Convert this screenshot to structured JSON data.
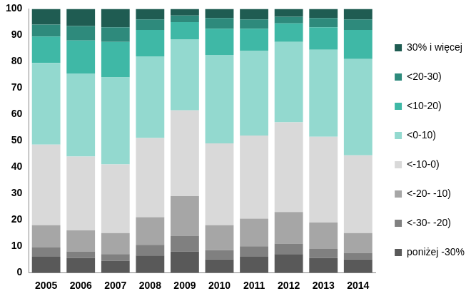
{
  "chart_data": {
    "type": "bar",
    "stacked": true,
    "legend": "right",
    "grid": false,
    "categories": [
      "2005",
      "2006",
      "2007",
      "2008",
      "2009",
      "2010",
      "2011",
      "2012",
      "2013",
      "2014"
    ],
    "ylim": [
      0,
      100
    ],
    "yticks": [
      0,
      10,
      20,
      30,
      40,
      50,
      60,
      70,
      80,
      90,
      100
    ],
    "series": [
      {
        "name": "poniżej -30%",
        "color": "#595959",
        "values": [
          6,
          5.5,
          4.5,
          6.5,
          8,
          5,
          6,
          7,
          5.5,
          5
        ]
      },
      {
        "name": "<-30- -20)",
        "color": "#808080",
        "values": [
          3.5,
          2.5,
          2.5,
          4,
          6,
          3.5,
          4,
          4,
          3.5,
          2.5
        ]
      },
      {
        "name": "<-20- -10)",
        "color": "#a6a6a6",
        "values": [
          8.5,
          8,
          8,
          10.5,
          15,
          9.5,
          10.5,
          12,
          10,
          7.5
        ]
      },
      {
        "name": "<-10-0)",
        "color": "#d9d9d9",
        "values": [
          30.5,
          28,
          26,
          30,
          32.5,
          31,
          31.5,
          34,
          32.5,
          29.5
        ]
      },
      {
        "name": "<0-10)",
        "color": "#93d9cf",
        "values": [
          31,
          31.5,
          33,
          31,
          27,
          33.5,
          32,
          30.5,
          33,
          36.5
        ]
      },
      {
        "name": "<10-20)",
        "color": "#3fb8a6",
        "values": [
          10,
          12.5,
          13.5,
          10,
          6.5,
          10,
          8.5,
          7,
          8.5,
          11
        ]
      },
      {
        "name": "<20-30)",
        "color": "#2e8a7c",
        "values": [
          4.5,
          5.5,
          5.5,
          4,
          2.5,
          4,
          3.5,
          2.5,
          3.5,
          4
        ]
      },
      {
        "name": "30% i więcej",
        "color": "#1f5c52",
        "values": [
          6,
          6.5,
          7,
          4,
          2.5,
          3.5,
          4,
          3,
          3.5,
          4
        ]
      }
    ]
  }
}
